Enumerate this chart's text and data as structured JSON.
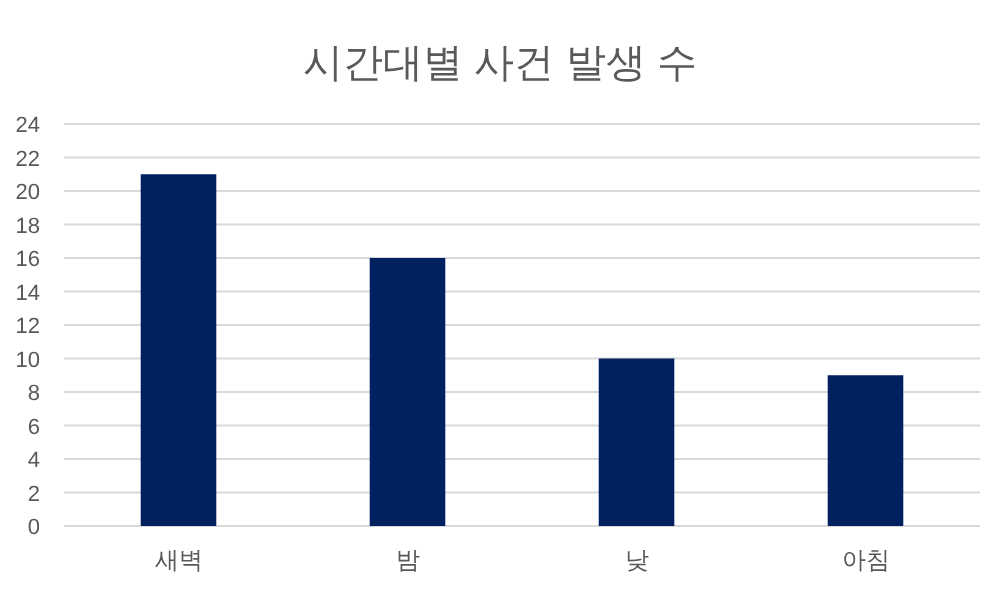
{
  "chart_data": {
    "type": "bar",
    "title": "시간대별 사건 발생 수",
    "categories": [
      "새벽",
      "밤",
      "낮",
      "아침"
    ],
    "values": [
      21,
      16,
      10,
      9
    ],
    "color": "#002060",
    "ylim": [
      0,
      24
    ],
    "yticks": [
      0,
      2,
      4,
      6,
      8,
      10,
      12,
      14,
      16,
      18,
      20,
      22,
      24
    ],
    "grid": "y"
  }
}
